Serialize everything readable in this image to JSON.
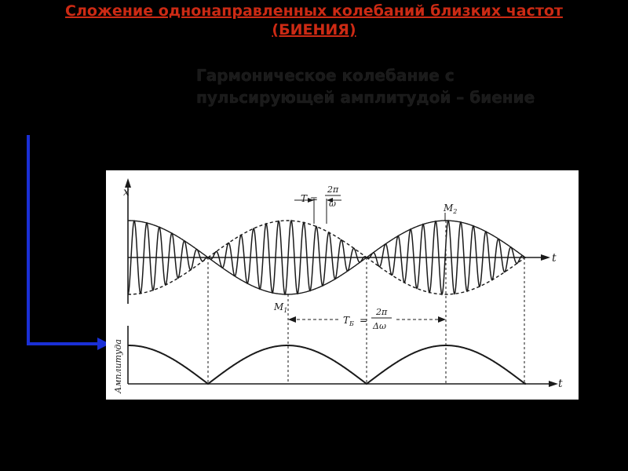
{
  "slide": {
    "title_line1": "Сложение однонаправленных колебаний близких частот",
    "title_line2": "(БИЕНИЯ)",
    "subtitle_line1": "Гармоническое колебание с",
    "subtitle_line2": "пульсирующей амплитудой – биение"
  },
  "colors": {
    "background": "#000000",
    "title": "#cc2a14",
    "subtitle": "#1a1a1a",
    "arrow": "#1a2fd6",
    "figure_bg": "#ffffff",
    "ink": "#1a1a1a"
  },
  "figure": {
    "top_plot": {
      "y_axis_label": "x",
      "x_axis_label": "t",
      "period_label_left": "T =",
      "period_label_num": "2π",
      "period_label_den": "ω",
      "point_m1": "M",
      "point_m1_sub": "1",
      "point_m2": "M",
      "point_m2_sub": "2",
      "beat_label_left": "T",
      "beat_label_sub": "Б",
      "beat_label_eq": "=",
      "beat_label_num": "2π",
      "beat_label_den": "Δω"
    },
    "bottom_plot": {
      "y_axis_label": "Амплитуда",
      "x_axis_label": "t"
    }
  }
}
